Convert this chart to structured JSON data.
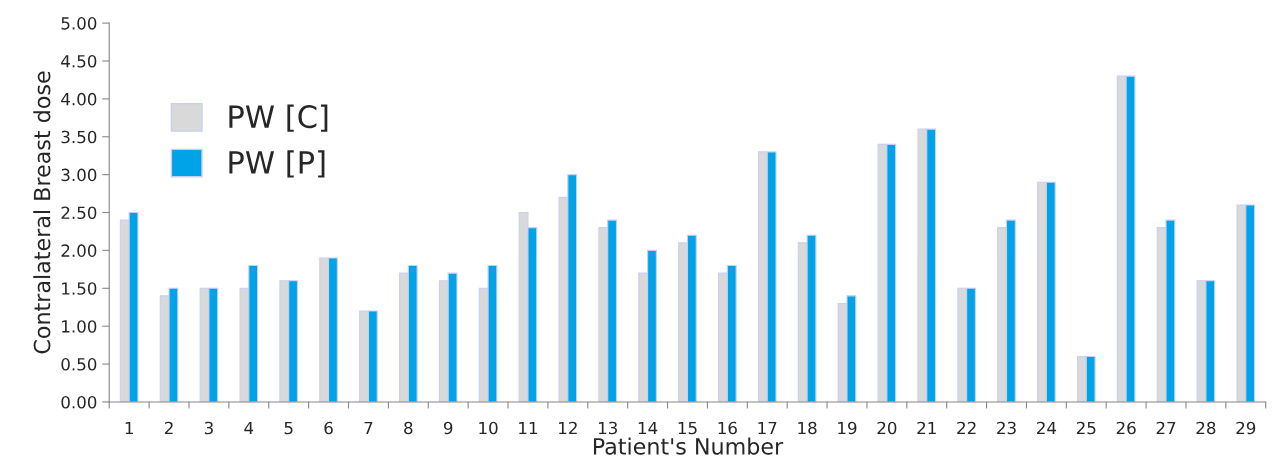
{
  "chart_data": {
    "type": "bar",
    "xlabel": "Patient's Number",
    "ylabel": "Contralateral Breast dose",
    "categories": [
      "1",
      "2",
      "3",
      "4",
      "5",
      "6",
      "7",
      "8",
      "9",
      "10",
      "11",
      "12",
      "13",
      "14",
      "15",
      "16",
      "17",
      "18",
      "19",
      "20",
      "21",
      "22",
      "23",
      "24",
      "25",
      "26",
      "27",
      "28",
      "29"
    ],
    "series": [
      {
        "name": "PW [C]",
        "color": "#d9d9d9",
        "values": [
          2.4,
          1.4,
          1.5,
          1.5,
          1.6,
          1.9,
          1.2,
          1.7,
          1.6,
          1.5,
          2.5,
          2.7,
          2.3,
          1.7,
          2.1,
          1.7,
          3.3,
          2.1,
          1.3,
          3.4,
          3.6,
          1.5,
          2.3,
          2.9,
          0.6,
          4.3,
          2.3,
          1.6,
          2.6
        ]
      },
      {
        "name": "PW [P]",
        "color": "#00a2e8",
        "values": [
          2.5,
          1.5,
          1.5,
          1.8,
          1.6,
          1.9,
          1.2,
          1.8,
          1.7,
          1.8,
          2.3,
          3.0,
          2.4,
          2.0,
          2.2,
          1.8,
          3.3,
          2.2,
          1.4,
          3.4,
          3.6,
          1.5,
          2.4,
          2.9,
          0.6,
          4.3,
          2.4,
          1.6,
          2.6
        ]
      }
    ],
    "ylim": [
      0,
      5
    ],
    "yticks": [
      {
        "value": 0,
        "label": "0.00"
      },
      {
        "value": 0.5,
        "label": "0.50"
      },
      {
        "value": 1,
        "label": "1.00"
      },
      {
        "value": 1.5,
        "label": "1.50"
      },
      {
        "value": 2,
        "label": "2.00"
      },
      {
        "value": 2.5,
        "label": "2.50"
      },
      {
        "value": 3,
        "label": "3.00"
      },
      {
        "value": 3.5,
        "label": "3.50"
      },
      {
        "value": 4,
        "label": "4.00"
      },
      {
        "value": 4.5,
        "label": "4.50"
      },
      {
        "value": 5,
        "label": "5.00"
      }
    ],
    "grid": false,
    "legend": "top left"
  }
}
